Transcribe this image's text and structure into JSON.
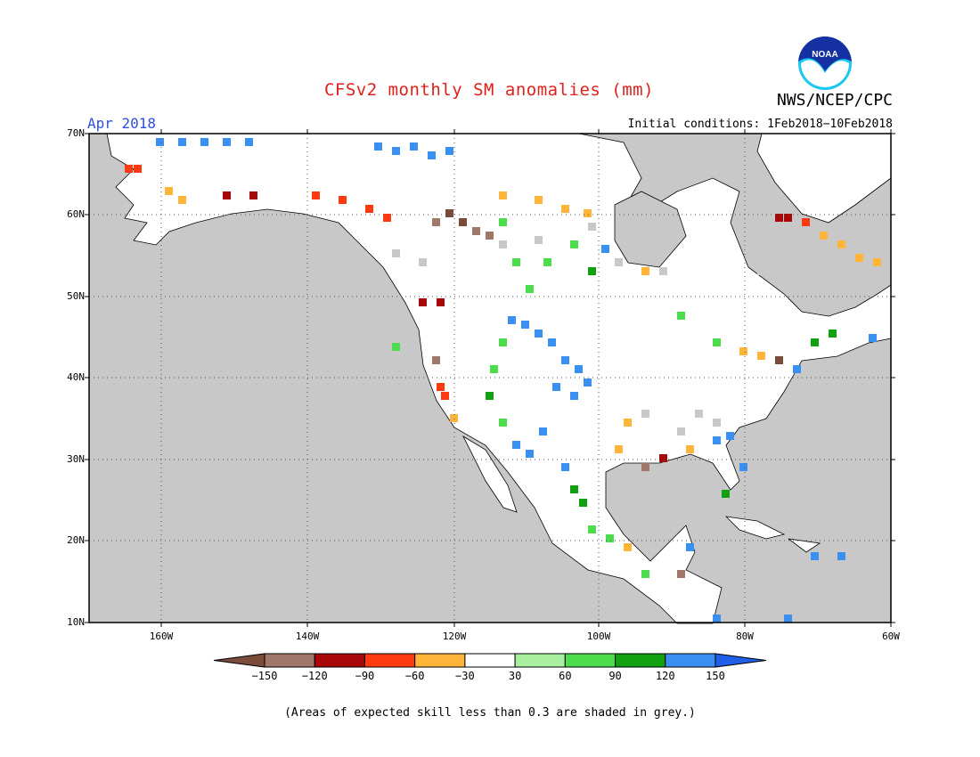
{
  "title": "CFSv2 monthly SM anomalies (mm)",
  "valid_month": "Apr 2018",
  "initial_conditions": "Initial conditions: 1Feb2018−10Feb2018",
  "agency": "NWS/NCEP/CPC",
  "logo_text": "NOAA",
  "lat_labels": [
    "70N",
    "60N",
    "50N",
    "40N",
    "30N",
    "20N",
    "10N"
  ],
  "lon_labels": [
    "160W",
    "140W",
    "120W",
    "100W",
    "80W",
    "60W"
  ],
  "colorbar": {
    "ticks": [
      "−150",
      "−120",
      "−90",
      "−60",
      "−30",
      "30",
      "60",
      "90",
      "120",
      "150"
    ],
    "colors": [
      "#7a4a3a",
      "#a0786a",
      "#a80808",
      "#ff3a10",
      "#ffb43a",
      "#ffffff",
      "#a8f0a0",
      "#4cdc4c",
      "#10a010",
      "#3a90f0",
      "#2060e8"
    ]
  },
  "note": "(Areas of expected skill less than 0.3 are shaded in grey.)",
  "map_colors": {
    "ocean": "#c8c8c8",
    "land": "#ffffff",
    "grey_skill": "#c8c8c8"
  }
}
